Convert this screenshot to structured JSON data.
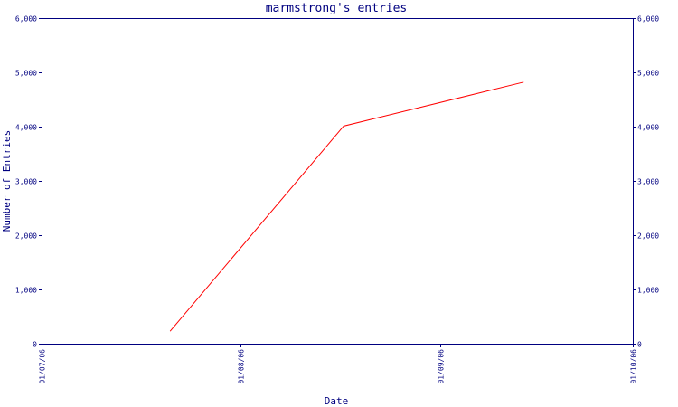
{
  "chart_data": {
    "type": "line",
    "title": "marmstrong's entries",
    "xlabel": "Date",
    "ylabel": "Number of Entries",
    "x_range": [
      "2006-07-01",
      "2006-10-01"
    ],
    "ylim": [
      0,
      6000
    ],
    "x_ticks": [
      {
        "date": "2006-07-01",
        "label": "01/07/06"
      },
      {
        "date": "2006-08-01",
        "label": "01/08/06"
      },
      {
        "date": "2006-09-01",
        "label": "01/09/06"
      },
      {
        "date": "2006-10-01",
        "label": "01/10/06"
      }
    ],
    "y_ticks": [
      {
        "value": 0,
        "label": "0"
      },
      {
        "value": 1000,
        "label": "1,000"
      },
      {
        "value": 2000,
        "label": "2,000"
      },
      {
        "value": 3000,
        "label": "3,000"
      },
      {
        "value": 4000,
        "label": "4,000"
      },
      {
        "value": 5000,
        "label": "5,000"
      },
      {
        "value": 6000,
        "label": "6,000"
      }
    ],
    "series": [
      {
        "color": "#ff0000",
        "points": [
          {
            "x": "2006-07-21",
            "y": 230
          },
          {
            "x": "2006-08-17",
            "y": 4010
          },
          {
            "x": "2006-09-14",
            "y": 4820
          }
        ]
      }
    ],
    "grid": false,
    "right_axis": true,
    "colors": {
      "axis": "#000080",
      "text": "#000080",
      "line": "#ff0000"
    }
  }
}
